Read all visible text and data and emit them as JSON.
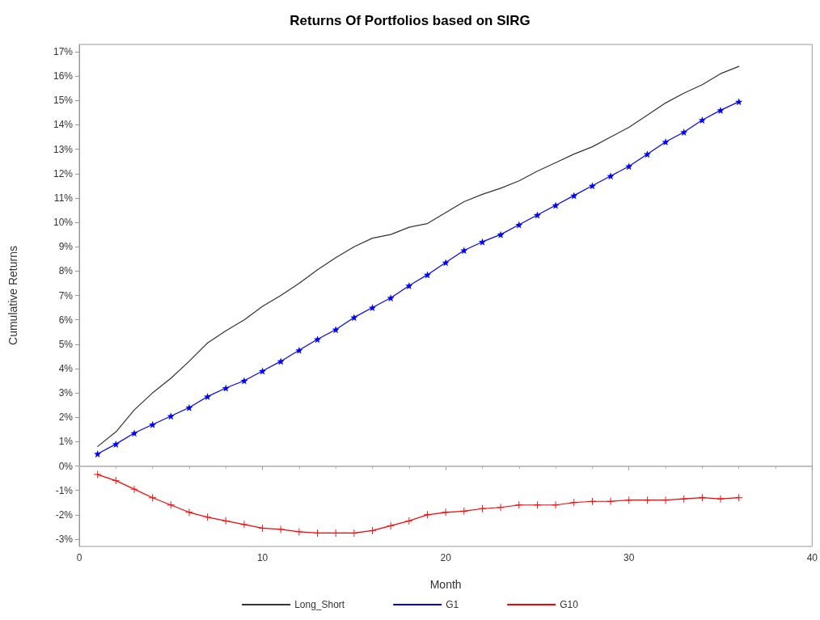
{
  "chart_data": {
    "type": "line",
    "title": "Returns Of Portfolios based on SIRG",
    "xlabel": "Month",
    "ylabel": "Cumulative Returns",
    "x": [
      1,
      2,
      3,
      4,
      5,
      6,
      7,
      8,
      9,
      10,
      11,
      12,
      13,
      14,
      15,
      16,
      17,
      18,
      19,
      20,
      21,
      22,
      23,
      24,
      25,
      26,
      27,
      28,
      29,
      30,
      31,
      32,
      33,
      34,
      35,
      36
    ],
    "series": [
      {
        "name": "Long_Short",
        "color": "#333333",
        "marker": "none",
        "values": [
          0.8,
          1.4,
          2.3,
          3.0,
          3.6,
          4.3,
          5.05,
          5.55,
          6.0,
          6.55,
          7.0,
          7.5,
          8.05,
          8.55,
          9.0,
          9.35,
          9.5,
          9.8,
          9.95,
          10.4,
          10.85,
          11.15,
          11.4,
          11.7,
          12.1,
          12.45,
          12.8,
          13.1,
          13.5,
          13.9,
          14.4,
          14.9,
          15.3,
          15.65,
          16.1,
          16.4
        ]
      },
      {
        "name": "G1",
        "color": "#0000ff",
        "marker": "star",
        "values": [
          0.5,
          0.9,
          1.35,
          1.7,
          2.05,
          2.4,
          2.85,
          3.2,
          3.5,
          3.9,
          4.3,
          4.75,
          5.2,
          5.6,
          6.1,
          6.5,
          6.9,
          7.4,
          7.85,
          8.35,
          8.85,
          9.2,
          9.5,
          9.9,
          10.3,
          10.7,
          11.1,
          11.5,
          11.9,
          12.3,
          12.8,
          13.3,
          13.7,
          14.2,
          14.6,
          14.95
        ]
      },
      {
        "name": "G10",
        "color": "#ff0000",
        "marker": "cross",
        "values": [
          -0.35,
          -0.6,
          -0.95,
          -1.3,
          -1.6,
          -1.9,
          -2.1,
          -2.25,
          -2.4,
          -2.55,
          -2.6,
          -2.7,
          -2.75,
          -2.75,
          -2.75,
          -2.65,
          -2.45,
          -2.25,
          -2.0,
          -1.9,
          -1.85,
          -1.75,
          -1.7,
          -1.6,
          -1.6,
          -1.6,
          -1.5,
          -1.45,
          -1.45,
          -1.4,
          -1.4,
          -1.4,
          -1.35,
          -1.3,
          -1.35,
          -1.3
        ]
      }
    ],
    "xlim": [
      0,
      40
    ],
    "xticks": [
      0,
      10,
      20,
      30,
      40
    ],
    "ylim": [
      -3.3,
      17.3
    ],
    "yticks": [
      {
        "value": -3,
        "label": "-3%"
      },
      {
        "value": -2,
        "label": "-2%"
      },
      {
        "value": -1,
        "label": "-1%"
      },
      {
        "value": 0,
        "label": "0%"
      },
      {
        "value": 1,
        "label": "1%"
      },
      {
        "value": 2,
        "label": "2%"
      },
      {
        "value": 3,
        "label": "3%"
      },
      {
        "value": 4,
        "label": "4%"
      },
      {
        "value": 5,
        "label": "5%"
      },
      {
        "value": 6,
        "label": "6%"
      },
      {
        "value": 7,
        "label": "7%"
      },
      {
        "value": 8,
        "label": "8%"
      },
      {
        "value": 9,
        "label": "9%"
      },
      {
        "value": 10,
        "label": "10%"
      },
      {
        "value": 11,
        "label": "11%"
      },
      {
        "value": 12,
        "label": "12%"
      },
      {
        "value": 13,
        "label": "13%"
      },
      {
        "value": 14,
        "label": "14%"
      },
      {
        "value": 15,
        "label": "15%"
      },
      {
        "value": 16,
        "label": "16%"
      },
      {
        "value": 17,
        "label": "17%"
      }
    ],
    "ref_lines": [
      {
        "axis": "y",
        "value": 0,
        "color": "#bbbbbb"
      }
    ],
    "grid": false,
    "legend": "bottom",
    "line_style": "solid"
  }
}
